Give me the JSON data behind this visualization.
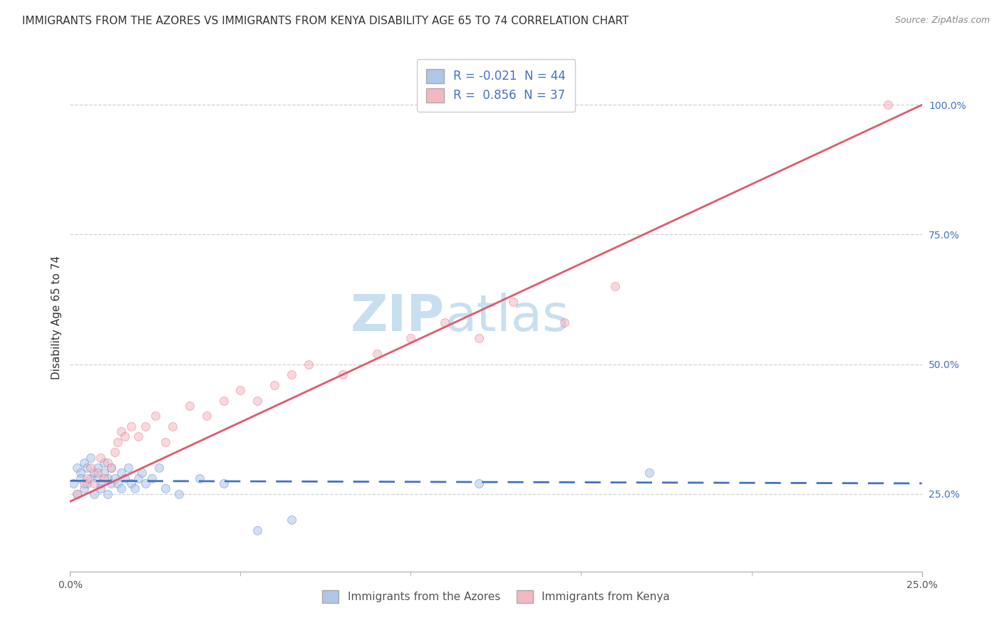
{
  "title": "IMMIGRANTS FROM THE AZORES VS IMMIGRANTS FROM KENYA DISABILITY AGE 65 TO 74 CORRELATION CHART",
  "source": "Source: ZipAtlas.com",
  "ylabel": "Disability Age 65 to 74",
  "watermark": "ZIPatlas",
  "legend1_label": "R = -0.021  N = 44",
  "legend2_label": "R =  0.856  N = 37",
  "legend1_color": "#aec6e8",
  "legend2_color": "#f4b8c1",
  "line1_color": "#4472C4",
  "line2_color": "#e05a6e",
  "ytick_values": [
    0.25,
    0.5,
    0.75,
    1.0
  ],
  "xmin": 0.0,
  "xmax": 0.25,
  "ymin": 0.1,
  "ymax": 1.08,
  "azores_x": [
    0.001,
    0.002,
    0.002,
    0.003,
    0.003,
    0.004,
    0.004,
    0.005,
    0.005,
    0.006,
    0.006,
    0.007,
    0.007,
    0.008,
    0.008,
    0.009,
    0.009,
    0.01,
    0.01,
    0.011,
    0.011,
    0.012,
    0.012,
    0.013,
    0.014,
    0.015,
    0.015,
    0.016,
    0.017,
    0.018,
    0.019,
    0.02,
    0.021,
    0.022,
    0.024,
    0.026,
    0.028,
    0.032,
    0.038,
    0.045,
    0.055,
    0.065,
    0.12,
    0.17
  ],
  "azores_y": [
    0.27,
    0.3,
    0.25,
    0.29,
    0.28,
    0.26,
    0.31,
    0.3,
    0.27,
    0.28,
    0.32,
    0.25,
    0.29,
    0.28,
    0.3,
    0.27,
    0.26,
    0.29,
    0.31,
    0.28,
    0.25,
    0.27,
    0.3,
    0.28,
    0.27,
    0.29,
    0.26,
    0.28,
    0.3,
    0.27,
    0.26,
    0.28,
    0.29,
    0.27,
    0.28,
    0.3,
    0.26,
    0.25,
    0.28,
    0.27,
    0.18,
    0.2,
    0.27,
    0.29
  ],
  "kenya_x": [
    0.002,
    0.004,
    0.005,
    0.006,
    0.007,
    0.008,
    0.009,
    0.01,
    0.011,
    0.012,
    0.013,
    0.014,
    0.015,
    0.016,
    0.018,
    0.02,
    0.022,
    0.025,
    0.028,
    0.03,
    0.035,
    0.04,
    0.045,
    0.05,
    0.055,
    0.06,
    0.065,
    0.07,
    0.08,
    0.09,
    0.1,
    0.11,
    0.12,
    0.13,
    0.145,
    0.16,
    0.24
  ],
  "kenya_y": [
    0.25,
    0.27,
    0.28,
    0.3,
    0.27,
    0.29,
    0.32,
    0.28,
    0.31,
    0.3,
    0.33,
    0.35,
    0.37,
    0.36,
    0.38,
    0.36,
    0.38,
    0.4,
    0.35,
    0.38,
    0.42,
    0.4,
    0.43,
    0.45,
    0.43,
    0.46,
    0.48,
    0.5,
    0.48,
    0.52,
    0.55,
    0.58,
    0.55,
    0.62,
    0.58,
    0.65,
    1.0
  ],
  "background_color": "#ffffff",
  "grid_color": "#cccccc",
  "title_color": "#333333",
  "title_fontsize": 11,
  "axis_fontsize": 11,
  "tick_fontsize": 10,
  "marker_size": 75,
  "marker_alpha": 0.55,
  "watermark_color": "#c8dff0",
  "watermark_fontsize": 52,
  "blue_line_y0": 0.275,
  "blue_line_y1": 0.27,
  "pink_line_y0": 0.235,
  "pink_line_y1": 1.0
}
